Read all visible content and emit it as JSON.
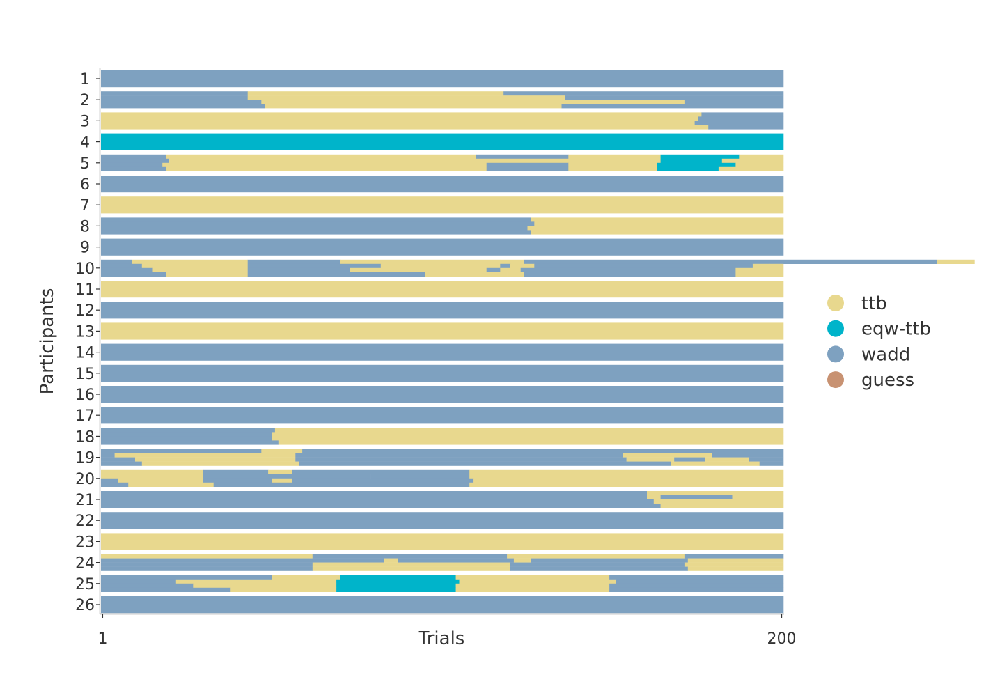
{
  "chart_data": {
    "type": "heatmap",
    "title": "",
    "xlabel": "Trials",
    "ylabel": "Participants",
    "x_tick_labels": [
      "1",
      "200"
    ],
    "xlim": [
      1,
      200
    ],
    "grid": false,
    "legend_position": "right",
    "legend": [
      {
        "name": "ttb",
        "color": "#E8D88E"
      },
      {
        "name": "eqw-ttb",
        "color": "#00B4CA"
      },
      {
        "name": "wadd",
        "color": "#7EA1C0"
      },
      {
        "name": "guess",
        "color": "#C89272"
      }
    ],
    "rows": [
      {
        "label": "1",
        "sub": [
          [
            [
              "wadd",
              200
            ]
          ]
        ]
      },
      {
        "label": "2",
        "sub": [
          [
            [
              "wadd",
              43
            ],
            [
              "ttb",
              75
            ],
            [
              "wadd",
              82
            ]
          ],
          [
            [
              "wadd",
              43
            ],
            [
              "ttb",
              93
            ],
            [
              "wadd",
              64
            ]
          ],
          [
            [
              "wadd",
              47
            ],
            [
              "ttb",
              89
            ],
            [
              "ttb",
              35
            ],
            [
              "wadd",
              29
            ]
          ],
          [
            [
              "wadd",
              48
            ],
            [
              "ttb",
              87
            ],
            [
              "wadd",
              65
            ]
          ]
        ]
      },
      {
        "label": "3",
        "sub": [
          [
            [
              "ttb",
              176
            ],
            [
              "wadd",
              24
            ]
          ],
          [
            [
              "ttb",
              175
            ],
            [
              "wadd",
              25
            ]
          ],
          [
            [
              "ttb",
              174
            ],
            [
              "wadd",
              26
            ]
          ],
          [
            [
              "ttb",
              178
            ],
            [
              "wadd",
              22
            ]
          ]
        ]
      },
      {
        "label": "4",
        "sub": [
          [
            [
              "eqw-ttb",
              200
            ]
          ]
        ]
      },
      {
        "label": "5",
        "sub": [
          [
            [
              "wadd",
              19
            ],
            [
              "ttb",
              91
            ],
            [
              "wadd",
              27
            ],
            [
              "ttb",
              27
            ],
            [
              "eqw-ttb",
              23
            ],
            [
              "ttb",
              13
            ]
          ],
          [
            [
              "wadd",
              20
            ],
            [
              "ttb",
              116
            ],
            [
              "ttb",
              28
            ],
            [
              "eqw-ttb",
              18
            ],
            [
              "ttb",
              18
            ]
          ],
          [
            [
              "wadd",
              18
            ],
            [
              "ttb",
              95
            ],
            [
              "wadd",
              24
            ],
            [
              "ttb",
              26
            ],
            [
              "eqw-ttb",
              23
            ],
            [
              "ttb",
              14
            ]
          ],
          [
            [
              "wadd",
              19
            ],
            [
              "ttb",
              94
            ],
            [
              "wadd",
              24
            ],
            [
              "ttb",
              26
            ],
            [
              "eqw-ttb",
              18
            ],
            [
              "ttb",
              19
            ]
          ]
        ]
      },
      {
        "label": "6",
        "sub": [
          [
            [
              "wadd",
              200
            ]
          ]
        ]
      },
      {
        "label": "7",
        "sub": [
          [
            [
              "ttb",
              200
            ]
          ]
        ]
      },
      {
        "label": "8",
        "sub": [
          [
            [
              "wadd",
              126
            ],
            [
              "ttb",
              74
            ]
          ],
          [
            [
              "wadd",
              127
            ],
            [
              "ttb",
              73
            ]
          ],
          [
            [
              "wadd",
              125
            ],
            [
              "ttb",
              75
            ]
          ],
          [
            [
              "wadd",
              126
            ],
            [
              "ttb",
              74
            ]
          ]
        ]
      },
      {
        "label": "9",
        "sub": [
          [
            [
              "wadd",
              200
            ]
          ]
        ]
      },
      {
        "label": "10",
        "sub": [
          [
            [
              "wadd",
              9
            ],
            [
              "ttb",
              34
            ],
            [
              "wadd",
              27
            ],
            [
              "ttb",
              47
            ],
            [
              "ttb",
              7
            ],
            [
              "wadd",
              121
            ],
            [
              "ttb",
              11
            ]
          ],
          [
            [
              "wadd",
              12
            ],
            [
              "ttb",
              31
            ],
            [
              "wadd",
              39
            ],
            [
              "ttb",
              35
            ],
            [
              "wadd",
              3
            ],
            [
              "ttb",
              7
            ],
            [
              "wadd",
              64
            ],
            [
              "ttb",
              5
            ],
            [
              "ttb",
              4
            ]
          ],
          [
            [
              "wadd",
              15
            ],
            [
              "ttb",
              28
            ],
            [
              "wadd",
              30
            ],
            [
              "ttb",
              40
            ],
            [
              "wadd",
              4
            ],
            [
              "ttb",
              6
            ],
            [
              "wadd",
              63
            ],
            [
              "ttb",
              14
            ]
          ],
          [
            [
              "wadd",
              19
            ],
            [
              "ttb",
              24
            ],
            [
              "wadd",
              52
            ],
            [
              "ttb",
              24
            ],
            [
              "ttb",
              5
            ],
            [
              "wadd",
              62
            ],
            [
              "ttb",
              14
            ]
          ]
        ]
      },
      {
        "label": "11",
        "sub": [
          [
            [
              "ttb",
              200
            ]
          ]
        ]
      },
      {
        "label": "12",
        "sub": [
          [
            [
              "wadd",
              200
            ]
          ]
        ]
      },
      {
        "label": "13",
        "sub": [
          [
            [
              "ttb",
              200
            ]
          ]
        ]
      },
      {
        "label": "14",
        "sub": [
          [
            [
              "wadd",
              200
            ]
          ]
        ]
      },
      {
        "label": "15",
        "sub": [
          [
            [
              "wadd",
              200
            ]
          ]
        ]
      },
      {
        "label": "16",
        "sub": [
          [
            [
              "wadd",
              200
            ]
          ]
        ]
      },
      {
        "label": "17",
        "sub": [
          [
            [
              "wadd",
              200
            ]
          ]
        ]
      },
      {
        "label": "18",
        "sub": [
          [
            [
              "wadd",
              51
            ],
            [
              "ttb",
              149
            ]
          ],
          [
            [
              "wadd",
              50
            ],
            [
              "ttb",
              150
            ]
          ],
          [
            [
              "wadd",
              50
            ],
            [
              "ttb",
              150
            ]
          ],
          [
            [
              "wadd",
              52
            ],
            [
              "ttb",
              148
            ]
          ]
        ]
      },
      {
        "label": "19",
        "sub": [
          [
            [
              "wadd",
              47
            ],
            [
              "ttb",
              12
            ],
            [
              "wadd",
              141
            ]
          ],
          [
            [
              "wadd",
              4
            ],
            [
              "ttb",
              53
            ],
            [
              "wadd",
              96
            ],
            [
              "ttb",
              26
            ],
            [
              "wadd",
              21
            ]
          ],
          [
            [
              "wadd",
              10
            ],
            [
              "ttb",
              47
            ],
            [
              "wadd",
              97
            ],
            [
              "ttb",
              14
            ],
            [
              "wadd",
              9
            ],
            [
              "ttb",
              13
            ],
            [
              "wadd",
              10
            ]
          ],
          [
            [
              "wadd",
              12
            ],
            [
              "ttb",
              46
            ],
            [
              "wadd",
              109
            ],
            [
              "ttb",
              26
            ],
            [
              "wadd",
              7
            ]
          ]
        ]
      },
      {
        "label": "20",
        "sub": [
          [
            [
              "ttb",
              30
            ],
            [
              "wadd",
              19
            ],
            [
              "ttb",
              7
            ],
            [
              "wadd",
              52
            ],
            [
              "ttb",
              92
            ]
          ],
          [
            [
              "ttb",
              30
            ],
            [
              "wadd",
              49
            ],
            [
              "wadd",
              29
            ],
            [
              "ttb",
              92
            ]
          ],
          [
            [
              "wadd",
              5
            ],
            [
              "ttb",
              25
            ],
            [
              "wadd",
              20
            ],
            [
              "ttb",
              6
            ],
            [
              "wadd",
              53
            ],
            [
              "ttb",
              91
            ]
          ],
          [
            [
              "wadd",
              8
            ],
            [
              "ttb",
              25
            ],
            [
              "wadd",
              75
            ],
            [
              "ttb",
              92
            ]
          ]
        ]
      },
      {
        "label": "21",
        "sub": [
          [
            [
              "wadd",
              160
            ],
            [
              "ttb",
              40
            ]
          ],
          [
            [
              "wadd",
              160
            ],
            [
              "ttb",
              4
            ],
            [
              "wadd",
              21
            ],
            [
              "ttb",
              15
            ]
          ],
          [
            [
              "wadd",
              162
            ],
            [
              "ttb",
              38
            ]
          ],
          [
            [
              "wadd",
              164
            ],
            [
              "ttb",
              36
            ]
          ]
        ]
      },
      {
        "label": "22",
        "sub": [
          [
            [
              "wadd",
              200
            ]
          ]
        ]
      },
      {
        "label": "23",
        "sub": [
          [
            [
              "ttb",
              200
            ]
          ]
        ]
      },
      {
        "label": "24",
        "sub": [
          [
            [
              "ttb",
              62
            ],
            [
              "wadd",
              57
            ],
            [
              "ttb",
              52
            ],
            [
              "wadd",
              29
            ]
          ],
          [
            [
              "wadd",
              62
            ],
            [
              "wadd",
              21
            ],
            [
              "ttb",
              4
            ],
            [
              "wadd",
              34
            ],
            [
              "ttb",
              5
            ],
            [
              "wadd",
              46
            ],
            [
              "ttb",
              28
            ]
          ],
          [
            [
              "wadd",
              62
            ],
            [
              "ttb",
              58
            ],
            [
              "wadd",
              51
            ],
            [
              "ttb",
              29
            ]
          ],
          [
            [
              "wadd",
              62
            ],
            [
              "ttb",
              58
            ],
            [
              "wadd",
              52
            ],
            [
              "ttb",
              28
            ]
          ]
        ]
      },
      {
        "label": "25",
        "sub": [
          [
            [
              "wadd",
              50
            ],
            [
              "ttb",
              20
            ],
            [
              "eqw-ttb",
              34
            ],
            [
              "ttb",
              45
            ],
            [
              "wadd",
              51
            ]
          ],
          [
            [
              "wadd",
              22
            ],
            [
              "ttb",
              47
            ],
            [
              "eqw-ttb",
              36
            ],
            [
              "ttb",
              46
            ],
            [
              "wadd",
              49
            ]
          ],
          [
            [
              "wadd",
              27
            ],
            [
              "ttb",
              42
            ],
            [
              "eqw-ttb",
              35
            ],
            [
              "ttb",
              45
            ],
            [
              "wadd",
              51
            ]
          ],
          [
            [
              "wadd",
              38
            ],
            [
              "ttb",
              31
            ],
            [
              "eqw-ttb",
              35
            ],
            [
              "ttb",
              45
            ],
            [
              "wadd",
              51
            ]
          ]
        ]
      },
      {
        "label": "26",
        "sub": [
          [
            [
              "wadd",
              200
            ]
          ]
        ]
      }
    ]
  }
}
